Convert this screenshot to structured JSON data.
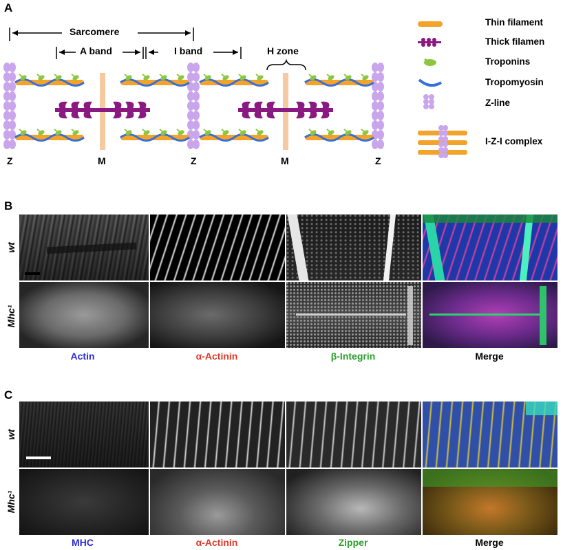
{
  "panels": {
    "a": {
      "letter": "A",
      "sarcomere_label": "Sarcomere",
      "a_band_label": "A band",
      "i_band_label": "I band",
      "h_zone_label": "H zone",
      "z_label": "Z",
      "m_label": "M",
      "legend": [
        {
          "icon": "thin-filament-icon",
          "label": "Thin filament"
        },
        {
          "icon": "thick-filament-icon",
          "label": "Thick filamen"
        },
        {
          "icon": "troponins-icon",
          "label": "Troponins"
        },
        {
          "icon": "tropomyosin-icon",
          "label": "Tropomyosin"
        },
        {
          "icon": "z-line-icon",
          "label": "Z-line"
        },
        {
          "icon": "izi-complex-icon",
          "label": "I-Z-I complex"
        }
      ]
    },
    "b": {
      "letter": "B",
      "row_labels": [
        "wt",
        "Mhc¹"
      ],
      "columns": [
        {
          "label": "Actin",
          "color": "#2b2bd6"
        },
        {
          "label": "α-Actinin",
          "color": "#e03a2a"
        },
        {
          "label": "β-Integrin",
          "color": "#2aa02a"
        },
        {
          "label": "Merge",
          "color": "#000000"
        }
      ]
    },
    "c": {
      "letter": "C",
      "row_labels": [
        "wt",
        "Mhc¹"
      ],
      "columns": [
        {
          "label": "MHC",
          "color": "#2b2bd6"
        },
        {
          "label": "α-Actinin",
          "color": "#e03a2a"
        },
        {
          "label": "Zipper",
          "color": "#2aa02a"
        },
        {
          "label": "Merge",
          "color": "#000000"
        }
      ]
    }
  },
  "colors": {
    "z_line": "#c9a6ec",
    "thin_filament": "#f2a32a",
    "thick_filament": "#8a1a82",
    "troponin": "#8dc63f",
    "tropomyosin": "#3a6fd8",
    "m_line": "#f7c9a0"
  }
}
